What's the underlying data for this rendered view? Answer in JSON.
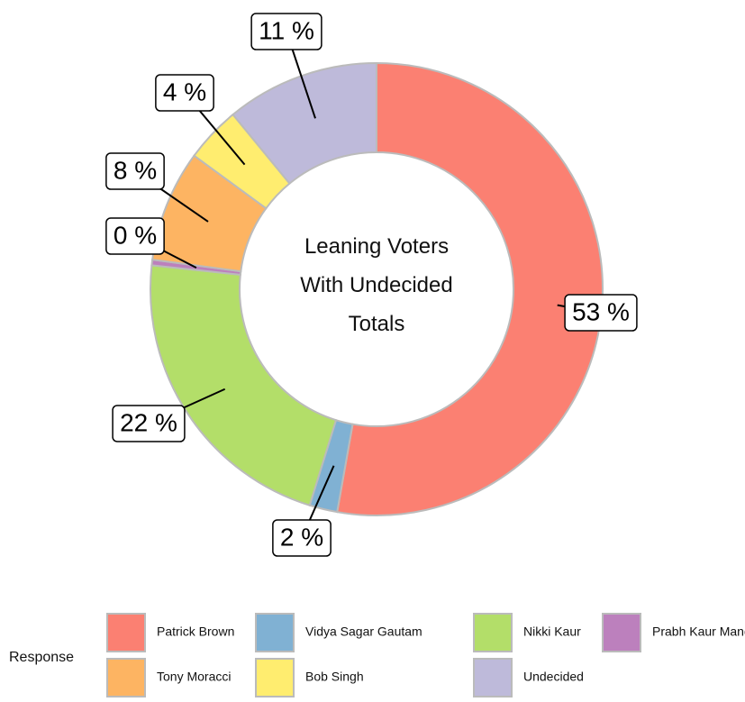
{
  "chart_data": {
    "type": "donut",
    "title": "Leaning Voters With Undecided Totals",
    "categories": [
      "Patrick Brown",
      "Vidya Sagar Gautam",
      "Nikki Kaur",
      "Prabh Kaur Mand",
      "Tony Moracci",
      "Bob Singh",
      "Undecided"
    ],
    "values": [
      53,
      2,
      22,
      0.4,
      8,
      4,
      11
    ],
    "value_labels": [
      "53 %",
      "2 %",
      "22 %",
      "0 %",
      "8 %",
      "4 %",
      "11 %"
    ],
    "colors": [
      "#fb8072",
      "#80b1d3",
      "#b3de69",
      "#bc80bd",
      "#fdb462",
      "#ffed6f",
      "#bebada"
    ],
    "legend_title": "Response",
    "legend": "bottom"
  }
}
